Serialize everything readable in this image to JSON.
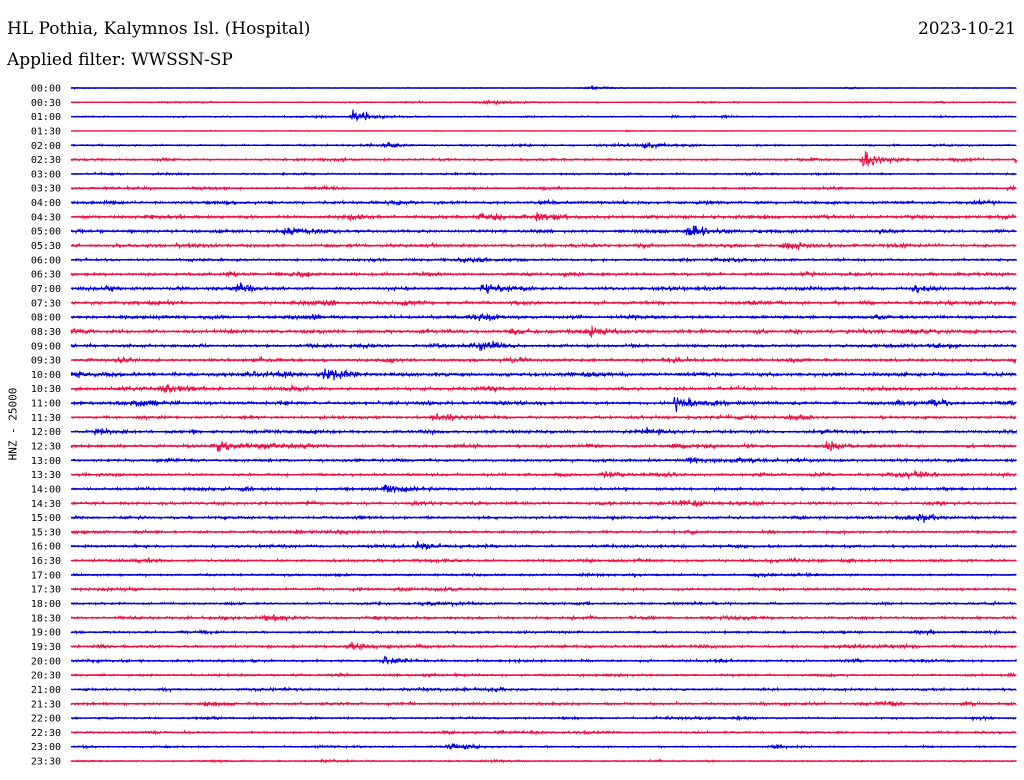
{
  "header": {
    "station": "HL Pothia, Kalymnos Isl. (Hospital)",
    "date": "2023-10-21",
    "filter": "Applied filter: WWSSN-SP"
  },
  "chart_data": {
    "type": "line",
    "title": "HL Pothia, Kalymnos Isl. (Hospital)",
    "subtitle": "Applied filter: WWSSN-SP",
    "ylabel": "HNZ - 25000",
    "xlabel": "",
    "grid": false,
    "colors": [
      "#0000dd",
      "#ee1144"
    ],
    "rows": [
      "00:00",
      "00:30",
      "01:00",
      "01:30",
      "02:00",
      "02:30",
      "03:00",
      "03:30",
      "04:00",
      "04:30",
      "05:00",
      "05:30",
      "06:00",
      "06:30",
      "07:00",
      "07:30",
      "08:00",
      "08:30",
      "09:00",
      "09:30",
      "10:00",
      "10:30",
      "11:00",
      "11:30",
      "12:00",
      "12:30",
      "13:00",
      "13:30",
      "14:00",
      "14:30",
      "15:00",
      "15:30",
      "16:00",
      "16:30",
      "17:00",
      "17:30",
      "18:00",
      "18:30",
      "19:00",
      "19:30",
      "20:00",
      "20:30",
      "21:00",
      "21:30",
      "22:00",
      "22:30",
      "23:00",
      "23:30"
    ],
    "row_minutes": 30,
    "noise": [
      0.15,
      0.2,
      0.25,
      0.1,
      0.3,
      0.35,
      0.3,
      0.35,
      0.5,
      0.55,
      0.5,
      0.55,
      0.45,
      0.5,
      0.5,
      0.55,
      0.5,
      0.55,
      0.5,
      0.55,
      0.6,
      0.55,
      0.55,
      0.5,
      0.5,
      0.5,
      0.45,
      0.45,
      0.45,
      0.5,
      0.45,
      0.45,
      0.45,
      0.45,
      0.4,
      0.45,
      0.4,
      0.45,
      0.4,
      0.45,
      0.4,
      0.4,
      0.4,
      0.45,
      0.35,
      0.35,
      0.3,
      0.25
    ],
    "events": [
      {
        "row": 0,
        "minute": 16.5,
        "amplitude": 0.4
      },
      {
        "row": 1,
        "minute": 13.2,
        "amplitude": 0.8
      },
      {
        "row": 2,
        "minute": 9.0,
        "amplitude": 2.2
      },
      {
        "row": 4,
        "minute": 10.0,
        "amplitude": 0.6
      },
      {
        "row": 4,
        "minute": 18.2,
        "amplitude": 0.8
      },
      {
        "row": 5,
        "minute": 25.2,
        "amplitude": 2.6
      },
      {
        "row": 5,
        "minute": 28.0,
        "amplitude": 0.7
      },
      {
        "row": 5,
        "minute": 30.0,
        "amplitude": 0.6
      },
      {
        "row": 7,
        "minute": 29.8,
        "amplitude": 0.9
      },
      {
        "row": 9,
        "minute": 13.0,
        "amplitude": 1.3
      },
      {
        "row": 9,
        "minute": 14.8,
        "amplitude": 1.3
      },
      {
        "row": 10,
        "minute": 6.8,
        "amplitude": 1.0
      },
      {
        "row": 10,
        "minute": 19.6,
        "amplitude": 1.9
      },
      {
        "row": 11,
        "minute": 22.7,
        "amplitude": 1.4
      },
      {
        "row": 14,
        "minute": 5.3,
        "amplitude": 1.2
      },
      {
        "row": 14,
        "minute": 13.1,
        "amplitude": 1.9
      },
      {
        "row": 14,
        "minute": 26.8,
        "amplitude": 0.8
      },
      {
        "row": 17,
        "minute": 14.0,
        "amplitude": 0.7
      },
      {
        "row": 17,
        "minute": 16.5,
        "amplitude": 1.5
      },
      {
        "row": 19,
        "minute": 30.0,
        "amplitude": 1.2
      },
      {
        "row": 20,
        "minute": 0.0,
        "amplitude": 1.1
      },
      {
        "row": 20,
        "minute": 8.1,
        "amplitude": 3.0
      },
      {
        "row": 21,
        "minute": 2.9,
        "amplitude": 1.5
      },
      {
        "row": 22,
        "minute": 2.2,
        "amplitude": 1.0
      },
      {
        "row": 22,
        "minute": 19.2,
        "amplitude": 2.2
      },
      {
        "row": 22,
        "minute": 26.2,
        "amplitude": 1.0
      },
      {
        "row": 23,
        "minute": 11.5,
        "amplitude": 0.8
      },
      {
        "row": 24,
        "minute": 0.8,
        "amplitude": 0.8
      },
      {
        "row": 24,
        "minute": 18.3,
        "amplitude": 1.2
      },
      {
        "row": 25,
        "minute": 4.7,
        "amplitude": 1.6
      },
      {
        "row": 25,
        "minute": 24.0,
        "amplitude": 1.3
      },
      {
        "row": 26,
        "minute": 19.7,
        "amplitude": 1.2
      },
      {
        "row": 27,
        "minute": 16.9,
        "amplitude": 1.0
      },
      {
        "row": 28,
        "minute": 10.0,
        "amplitude": 1.5
      },
      {
        "row": 30,
        "minute": 27.0,
        "amplitude": 0.6
      },
      {
        "row": 32,
        "minute": 11.0,
        "amplitude": 1.2
      },
      {
        "row": 39,
        "minute": 8.9,
        "amplitude": 1.8
      },
      {
        "row": 40,
        "minute": 10.0,
        "amplitude": 1.1
      },
      {
        "row": 43,
        "minute": 4.3,
        "amplitude": 0.6
      },
      {
        "row": 46,
        "minute": 12.0,
        "amplitude": 1.0
      }
    ]
  }
}
